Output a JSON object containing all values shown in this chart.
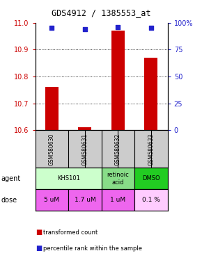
{
  "title": "GDS4912 / 1385553_at",
  "samples": [
    "GSM580630",
    "GSM580631",
    "GSM580632",
    "GSM580633"
  ],
  "bar_values": [
    10.76,
    10.61,
    10.97,
    10.87
  ],
  "bar_bottom": 10.6,
  "percentile_values": [
    95,
    94,
    96,
    95
  ],
  "ylim": [
    10.6,
    11.0
  ],
  "yticks_left": [
    10.6,
    10.7,
    10.8,
    10.9,
    11.0
  ],
  "yticks_right": [
    0,
    25,
    50,
    75,
    100
  ],
  "yticks_right_labels": [
    "0",
    "25",
    "50",
    "75",
    "100%"
  ],
  "bar_color": "#cc0000",
  "dot_color": "#2222cc",
  "agent_row": [
    {
      "label": "KHS101",
      "span": [
        0,
        2
      ],
      "color": "#ccffcc"
    },
    {
      "label": "retinoic\nacid",
      "span": [
        2,
        3
      ],
      "color": "#88dd88"
    },
    {
      "label": "DMSO",
      "span": [
        3,
        4
      ],
      "color": "#22cc22"
    }
  ],
  "dose_row": [
    {
      "label": "5 uM",
      "span": [
        0,
        1
      ],
      "color": "#ee66ee"
    },
    {
      "label": "1.7 uM",
      "span": [
        1,
        2
      ],
      "color": "#ee66ee"
    },
    {
      "label": "1 uM",
      "span": [
        2,
        3
      ],
      "color": "#ee66ee"
    },
    {
      "label": "0.1 %",
      "span": [
        3,
        4
      ],
      "color": "#ffccff"
    }
  ],
  "sample_row_color": "#cccccc",
  "legend_red_label": "transformed count",
  "legend_blue_label": "percentile rank within the sample",
  "bg_color": "#ffffff"
}
